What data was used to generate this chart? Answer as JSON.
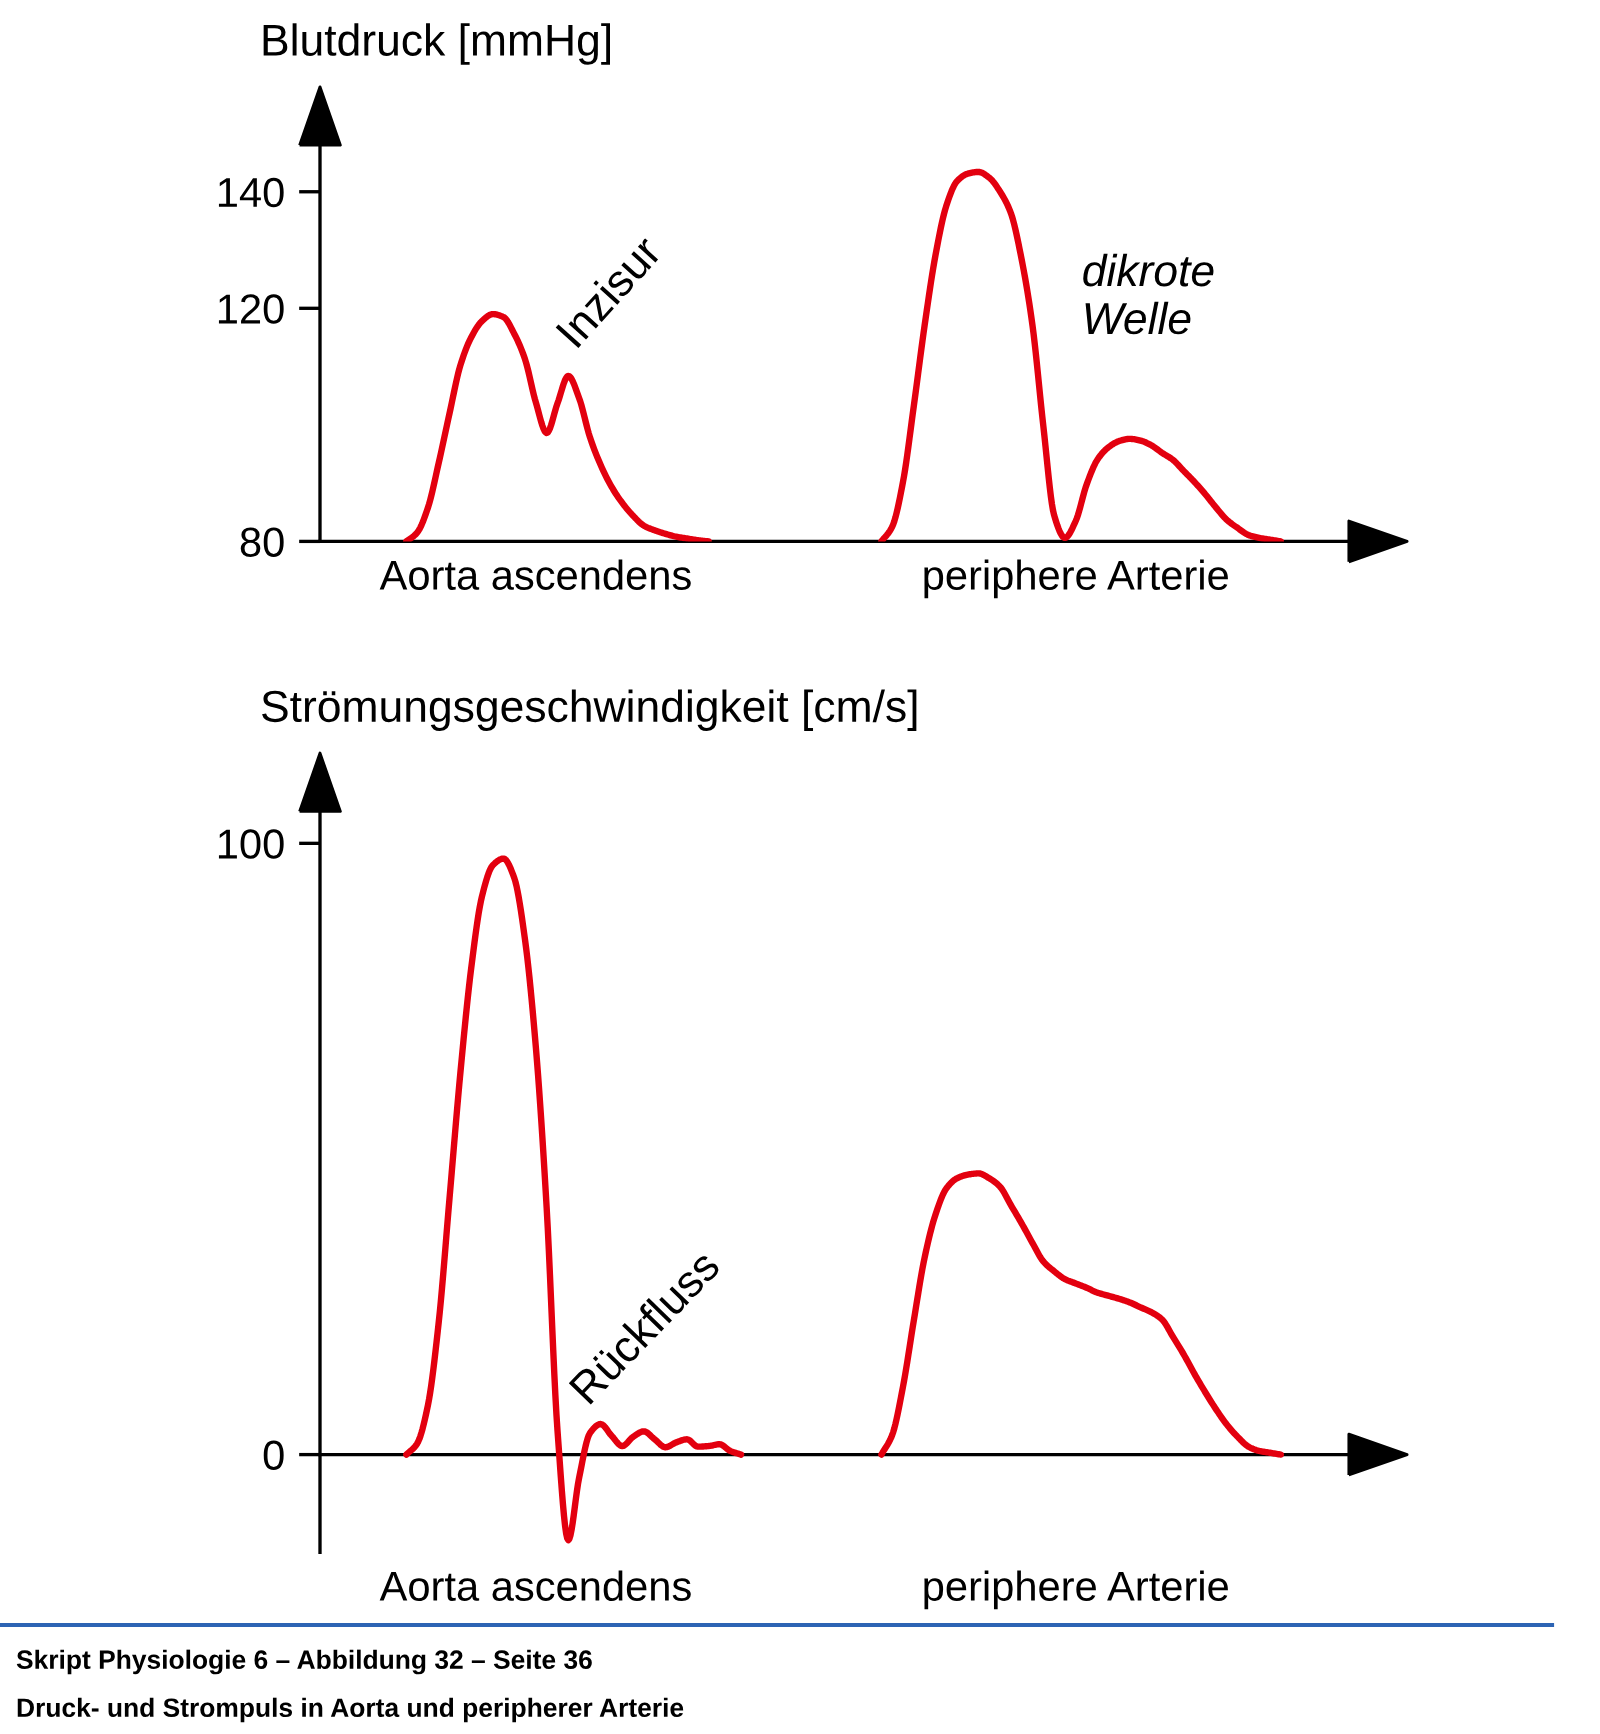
{
  "chart_data": [
    {
      "type": "line",
      "ylabel": "Blutdruck [mmHg]",
      "categories": [
        null,
        null,
        null,
        null,
        null,
        null,
        null,
        null,
        null,
        null,
        null,
        null,
        "Aorta ascendens",
        null,
        null,
        null,
        null,
        null,
        null,
        null,
        null,
        null,
        null,
        null,
        null,
        null,
        null,
        null,
        null,
        null,
        null,
        null,
        null,
        null,
        null,
        null,
        null,
        null,
        null,
        null,
        null,
        null,
        null,
        null,
        null,
        null,
        null,
        null,
        null,
        null,
        null,
        null,
        null,
        null,
        null,
        null,
        null,
        null,
        null,
        null,
        null,
        null,
        "periphere Arterie",
        null,
        null,
        null,
        null,
        null,
        null,
        null,
        null,
        null,
        null,
        null,
        null,
        null,
        null,
        null,
        null,
        null,
        null,
        null,
        null
      ],
      "ylim": [
        80,
        153
      ],
      "yticks": [
        80,
        120,
        140
      ],
      "line_style": "solid",
      "series": [
        {
          "color": "#e3000f",
          "values": [
            80,
            81.5,
            85.8,
            93.5,
            102.0,
            110.2,
            115.0,
            117.8,
            119.0,
            118.5,
            115.6,
            111.2,
            103.8,
            98.6,
            103.7,
            108.4,
            104.6,
            97.9,
            93.1,
            89.4,
            86.6,
            84.4,
            82.7,
            81.9,
            81.3,
            80.8,
            80.5,
            80.2,
            80,
            null,
            null,
            null,
            null,
            null,
            null,
            null,
            null,
            null,
            null,
            null,
            null,
            null,
            null,
            null,
            null,
            null,
            null,
            null,
            null,
            null,
            null,
            null,
            null,
            null,
            null,
            null,
            null,
            null,
            null,
            null,
            null,
            null,
            null,
            null,
            null,
            null,
            null,
            null,
            null,
            null,
            null,
            null,
            null,
            null,
            null,
            null,
            null,
            null,
            null,
            null,
            null,
            null,
            null
          ]
        },
        {
          "color": "#e3000f",
          "values": [
            null,
            null,
            null,
            null,
            null,
            null,
            null,
            null,
            null,
            null,
            null,
            null,
            null,
            null,
            null,
            null,
            null,
            null,
            null,
            null,
            null,
            null,
            null,
            null,
            null,
            null,
            null,
            null,
            null,
            null,
            null,
            null,
            null,
            null,
            null,
            null,
            null,
            null,
            null,
            null,
            null,
            null,
            null,
            null,
            80,
            82.5,
            90.2,
            103.2,
            117.0,
            129.0,
            137.5,
            141.8,
            143.1,
            143.4,
            142.4,
            140.0,
            136.3,
            128.3,
            117.0,
            99.8,
            84.5,
            80.6,
            83.5,
            89.7,
            94.0,
            96.1,
            97.2,
            97.6,
            97.3,
            96.5,
            95.2,
            94.0,
            92.1,
            90.2,
            88.1,
            85.8,
            83.7,
            82.3,
            81.1,
            80.6,
            80.3,
            80,
            null
          ]
        }
      ],
      "annotations": [
        "Inzisur",
        "dikrote\nWelle"
      ]
    },
    {
      "type": "line",
      "ylabel": "Strömungsgeschwindigkeit [cm/s]",
      "categories": [
        null,
        null,
        null,
        null,
        null,
        null,
        null,
        null,
        null,
        null,
        null,
        null,
        "Aorta ascendens",
        null,
        null,
        null,
        null,
        null,
        null,
        null,
        null,
        null,
        null,
        null,
        null,
        null,
        null,
        null,
        null,
        null,
        null,
        null,
        null,
        null,
        null,
        null,
        null,
        null,
        null,
        null,
        null,
        null,
        null,
        null,
        null,
        null,
        null,
        null,
        null,
        null,
        null,
        null,
        null,
        null,
        null,
        null,
        null,
        null,
        null,
        null,
        null,
        null,
        "periphere Arterie",
        null,
        null,
        null,
        null,
        null,
        null,
        null,
        null,
        null,
        null,
        null,
        null,
        null,
        null,
        null,
        null,
        null,
        null,
        null,
        null
      ],
      "ylim": [
        -16,
        110
      ],
      "yticks": [
        0,
        100
      ],
      "line_style": "solid",
      "series": [
        {
          "color": "#e3000f",
          "values": [
            0,
            1.8,
            8.1,
            21.7,
            42.0,
            62.4,
            79.5,
            91.3,
            96.4,
            97.5,
            94.3,
            84.1,
            66.5,
            40.2,
            3.9,
            -14.0,
            -3.8,
            3.5,
            5.0,
            3.1,
            1.4,
            2.9,
            3.8,
            2.5,
            1.2,
            2.0,
            2.5,
            1.3,
            1.4,
            1.7,
            0.6,
            0,
            null,
            null,
            null,
            null,
            null,
            null,
            null,
            null,
            null,
            null,
            null,
            null,
            null,
            null,
            null,
            null,
            null,
            null,
            null,
            null,
            null,
            null,
            null,
            null,
            null,
            null,
            null,
            null,
            null,
            null,
            null,
            null,
            null,
            null,
            null,
            null,
            null,
            null,
            null,
            null,
            null,
            null,
            null,
            null,
            null,
            null,
            null,
            null,
            null,
            null,
            null
          ]
        },
        {
          "color": "#e3000f",
          "values": [
            null,
            null,
            null,
            null,
            null,
            null,
            null,
            null,
            null,
            null,
            null,
            null,
            null,
            null,
            null,
            null,
            null,
            null,
            null,
            null,
            null,
            null,
            null,
            null,
            null,
            null,
            null,
            null,
            null,
            null,
            null,
            null,
            null,
            null,
            null,
            null,
            null,
            null,
            null,
            null,
            null,
            null,
            null,
            null,
            0,
            3.2,
            11.1,
            21.9,
            32.2,
            39.2,
            43.5,
            45.2,
            45.8,
            46.0,
            45.2,
            43.8,
            40.8,
            37.8,
            34.6,
            31.6,
            30.0,
            28.7,
            28.0,
            27.3,
            26.5,
            26.0,
            25.5,
            24.9,
            24.1,
            23.3,
            22.1,
            19.3,
            16.4,
            13.2,
            10.2,
            7.4,
            4.9,
            2.9,
            1.3,
            0.6,
            0.3,
            0,
            null
          ]
        }
      ],
      "annotations": [
        "Rückfluss",
        "Skript Physiologie 6 – Abbildung 32 – Seite 36",
        "Druck- und Strompuls in Aorta und peripherer Arterie"
      ]
    }
  ]
}
